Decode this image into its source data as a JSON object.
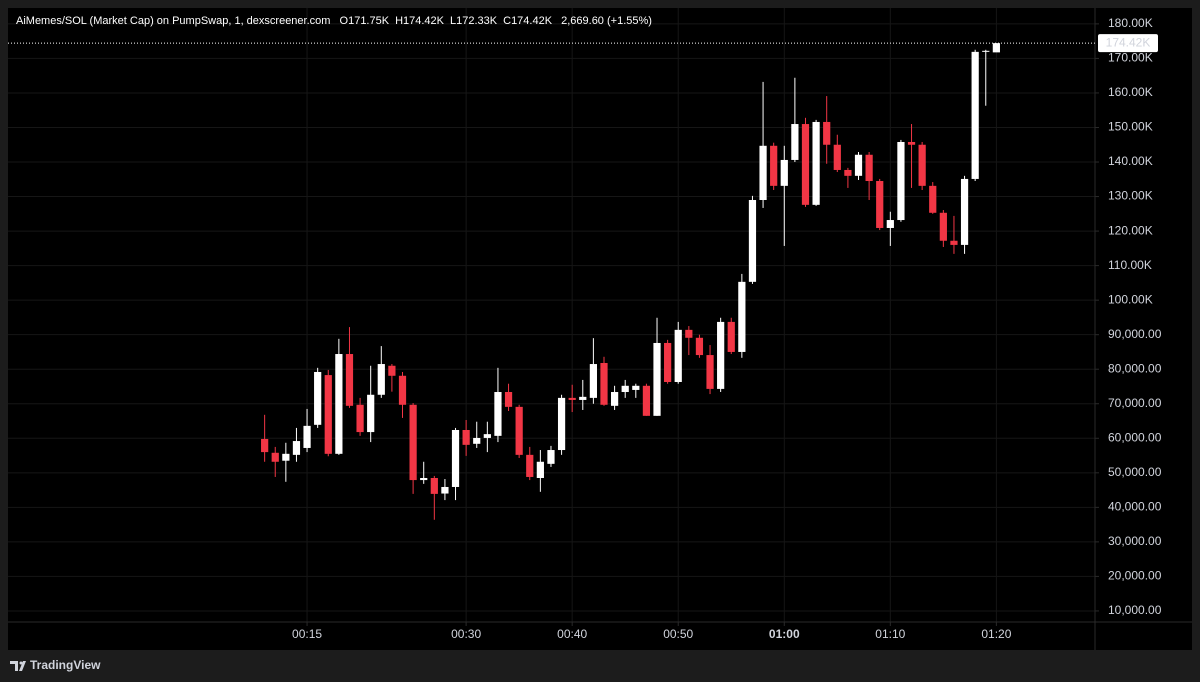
{
  "chart_data": {
    "type": "candlestick",
    "title": "AiMemes/SOL (Market Cap) on PumpSwap, 1, dexscreener.com",
    "ohlc_legend": [
      {
        "prefix": "O",
        "text": "171.75K"
      },
      {
        "prefix": "H",
        "text": "174.42K"
      },
      {
        "prefix": "L",
        "text": "172.33K"
      },
      {
        "prefix": "C",
        "text": "174.42K"
      }
    ],
    "change": "2,669.60 (+1.55%)",
    "brand": "TradingView",
    "up_color": "#ffffff",
    "down_color": "#f23645",
    "grid": true,
    "x": [
      11,
      12,
      13,
      14,
      15,
      16,
      17,
      18,
      19,
      20,
      21,
      22,
      23,
      24,
      25,
      26,
      27,
      28,
      29,
      30,
      31,
      32,
      33,
      34,
      35,
      36,
      37,
      38,
      39,
      40,
      41,
      42,
      43,
      44,
      45,
      46,
      47,
      48,
      49,
      50,
      51,
      52,
      53,
      54,
      55,
      56,
      57,
      58,
      59,
      60,
      61,
      62,
      63,
      64,
      65,
      66,
      67,
      68,
      69,
      70,
      71,
      72,
      73,
      74,
      75,
      76,
      77,
      78,
      79,
      80
    ],
    "open": [
      59800,
      55800,
      53500,
      55200,
      57200,
      63900,
      78300,
      55500,
      84400,
      69700,
      61800,
      72600,
      81000,
      78100,
      69700,
      47900,
      48500,
      44000,
      45900,
      62400,
      58400,
      60100,
      60700,
      73400,
      69100,
      55200,
      48500,
      52600,
      56600,
      71700,
      71100,
      71700,
      81800,
      69400,
      73400,
      74000,
      75200,
      66500,
      87600,
      76300,
      91400,
      89100,
      84100,
      74300,
      93700,
      85000,
      105300,
      129000,
      144700,
      133100,
      140600,
      151000,
      127600,
      151600,
      145000,
      137700,
      136000,
      142100,
      134500,
      120900,
      123200,
      145800,
      145000,
      133100,
      125300,
      117200,
      116000,
      135100,
      171900,
      171750
    ],
    "high": [
      66800,
      57500,
      58700,
      63000,
      68500,
      80400,
      79800,
      88800,
      92200,
      71700,
      81000,
      86700,
      81500,
      79200,
      70200,
      53200,
      49100,
      48200,
      63000,
      65300,
      64800,
      64800,
      80400,
      75800,
      69700,
      57500,
      56600,
      57800,
      72600,
      75500,
      76900,
      89000,
      83600,
      75200,
      76900,
      75800,
      75800,
      94900,
      88500,
      93700,
      92500,
      90000,
      87000,
      94900,
      94900,
      107600,
      130200,
      163200,
      145600,
      144700,
      164400,
      152800,
      152200,
      159100,
      147900,
      138300,
      142900,
      142900,
      135100,
      125600,
      146400,
      151000,
      145800,
      134200,
      126100,
      124400,
      136000,
      172500,
      172500,
      174420
    ],
    "low": [
      53200,
      48800,
      47400,
      53200,
      56000,
      63000,
      54800,
      55200,
      68800,
      60700,
      58900,
      71700,
      73500,
      65900,
      43900,
      46800,
      36400,
      42100,
      42100,
      54900,
      57200,
      56000,
      58900,
      67900,
      54300,
      47900,
      44500,
      51700,
      55200,
      67600,
      68200,
      70000,
      69400,
      68200,
      71700,
      71700,
      66500,
      66500,
      75800,
      75800,
      84100,
      83300,
      72800,
      73400,
      84400,
      83300,
      104700,
      126700,
      131900,
      115700,
      140000,
      127000,
      127300,
      139500,
      137100,
      132500,
      134800,
      129000,
      120300,
      115700,
      122700,
      132500,
      131900,
      125000,
      115400,
      113400,
      113400,
      134500,
      156300,
      172330
    ],
    "close": [
      56000,
      53200,
      55500,
      59200,
      63600,
      79200,
      55500,
      84400,
      69400,
      61800,
      72600,
      81500,
      78100,
      69700,
      47900,
      48500,
      43900,
      45900,
      62400,
      58100,
      60100,
      61200,
      73400,
      69100,
      55200,
      48800,
      53200,
      56600,
      71700,
      71100,
      72000,
      81500,
      69700,
      73400,
      75200,
      75200,
      66500,
      87600,
      76300,
      91400,
      89100,
      84100,
      74300,
      93700,
      85000,
      105300,
      129000,
      144700,
      133100,
      140600,
      151000,
      127600,
      151600,
      145000,
      137700,
      136000,
      142100,
      134500,
      120900,
      123200,
      145800,
      145000,
      133100,
      125300,
      117200,
      116000,
      135100,
      171900,
      172200,
      174420
    ],
    "last_price": {
      "value": 174420,
      "label": "174.42K"
    },
    "xlim": [
      -13.2,
      89.3
    ],
    "xticks": [
      {
        "value": 15,
        "label": "00:15"
      },
      {
        "value": 30,
        "label": "00:30"
      },
      {
        "value": 40,
        "label": "00:40"
      },
      {
        "value": 50,
        "label": "00:50"
      },
      {
        "value": 60,
        "label": "01:00",
        "bold": true
      },
      {
        "value": 70,
        "label": "01:10"
      },
      {
        "value": 80,
        "label": "01:20"
      }
    ],
    "ylim": [
      6800,
      184600
    ],
    "yticks": [
      {
        "value": 10000,
        "label": "10,000.00"
      },
      {
        "value": 20000,
        "label": "20,000.00"
      },
      {
        "value": 30000,
        "label": "30,000.00"
      },
      {
        "value": 40000,
        "label": "40,000.00"
      },
      {
        "value": 50000,
        "label": "50,000.00"
      },
      {
        "value": 60000,
        "label": "60,000.00"
      },
      {
        "value": 70000,
        "label": "70,000.00"
      },
      {
        "value": 80000,
        "label": "80,000.00"
      },
      {
        "value": 90000,
        "label": "90,000.00"
      },
      {
        "value": 100000,
        "label": "100.00K"
      },
      {
        "value": 110000,
        "label": "110.00K"
      },
      {
        "value": 120000,
        "label": "120.00K"
      },
      {
        "value": 130000,
        "label": "130.00K"
      },
      {
        "value": 140000,
        "label": "140.00K"
      },
      {
        "value": 150000,
        "label": "150.00K"
      },
      {
        "value": 160000,
        "label": "160.00K"
      },
      {
        "value": 170000,
        "label": "170.00K"
      },
      {
        "value": 180000,
        "label": "180.00K"
      }
    ]
  }
}
